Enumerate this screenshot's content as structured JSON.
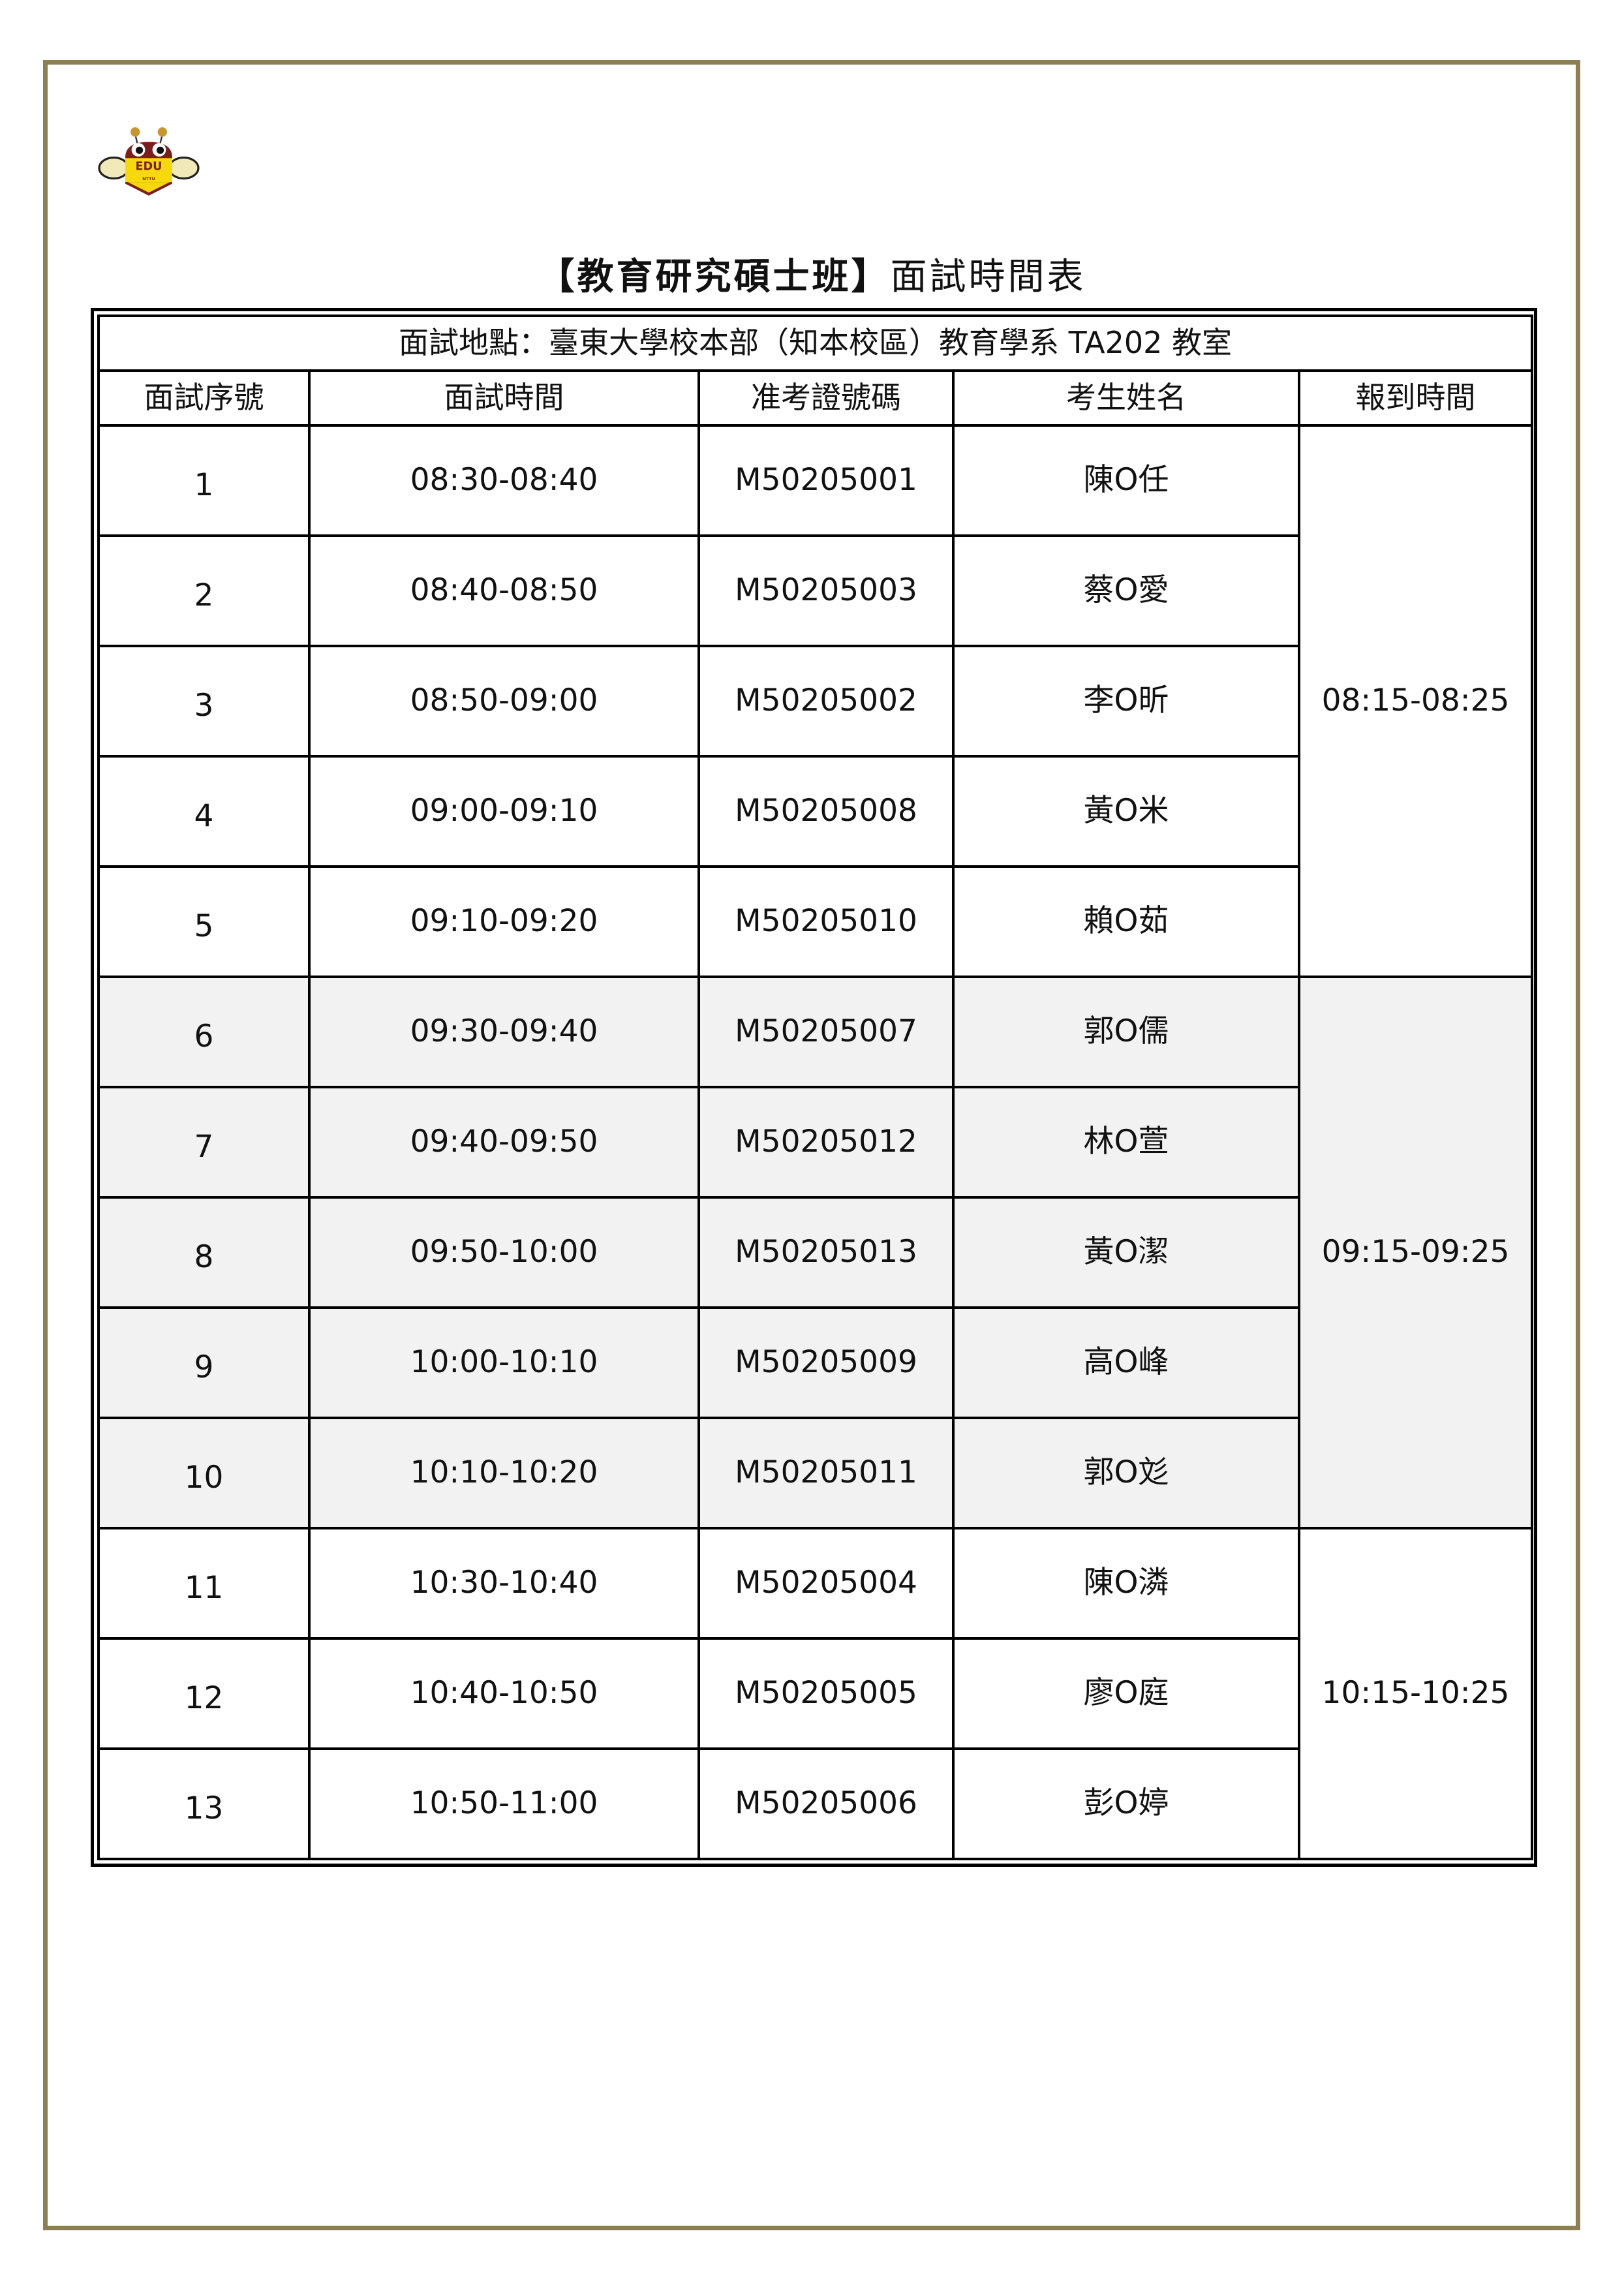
{
  "logo": {
    "text": "EDU",
    "subtext": "NTTU",
    "colors": {
      "body": "#7a1e1e",
      "band": "#f5d90a"
    }
  },
  "title": {
    "bracketed": "【教育研究碩士班】",
    "rest": "面試時間表"
  },
  "location": "面試地點：臺東大學校本部（知本校區）教育學系 TA202 教室",
  "columns": [
    "面試序號",
    "面試時間",
    "准考證號碼",
    "考生姓名",
    "報到時間"
  ],
  "colors": {
    "frame": "#8c8050",
    "shade": "#f2f2f2"
  },
  "rows": [
    {
      "no": "1",
      "time": "08:30-08:40",
      "id": "M50205001",
      "name": "陳O任"
    },
    {
      "no": "2",
      "time": "08:40-08:50",
      "id": "M50205003",
      "name": "蔡O愛"
    },
    {
      "no": "3",
      "time": "08:50-09:00",
      "id": "M50205002",
      "name": "李O昕"
    },
    {
      "no": "4",
      "time": "09:00-09:10",
      "id": "M50205008",
      "name": "黃O米"
    },
    {
      "no": "5",
      "time": "09:10-09:20",
      "id": "M50205010",
      "name": "賴O茹"
    },
    {
      "no": "6",
      "time": "09:30-09:40",
      "id": "M50205007",
      "name": "郭O儒"
    },
    {
      "no": "7",
      "time": "09:40-09:50",
      "id": "M50205012",
      "name": "林O萱"
    },
    {
      "no": "8",
      "time": "09:50-10:00",
      "id": "M50205013",
      "name": "黃O潔"
    },
    {
      "no": "9",
      "time": "10:00-10:10",
      "id": "M50205009",
      "name": "高O峰"
    },
    {
      "no": "10",
      "time": "10:10-10:20",
      "id": "M50205011",
      "name": "郭O彣"
    },
    {
      "no": "11",
      "time": "10:30-10:40",
      "id": "M50205004",
      "name": "陳O潾"
    },
    {
      "no": "12",
      "time": "10:40-10:50",
      "id": "M50205005",
      "name": "廖O庭"
    },
    {
      "no": "13",
      "time": "10:50-11:00",
      "id": "M50205006",
      "name": "彭O婷"
    }
  ],
  "checkin_groups": [
    {
      "time": "08:15-08:25",
      "span": 5,
      "shaded": false
    },
    {
      "time": "09:15-09:25",
      "span": 5,
      "shaded": true
    },
    {
      "time": "10:15-10:25",
      "span": 3,
      "shaded": false
    }
  ]
}
